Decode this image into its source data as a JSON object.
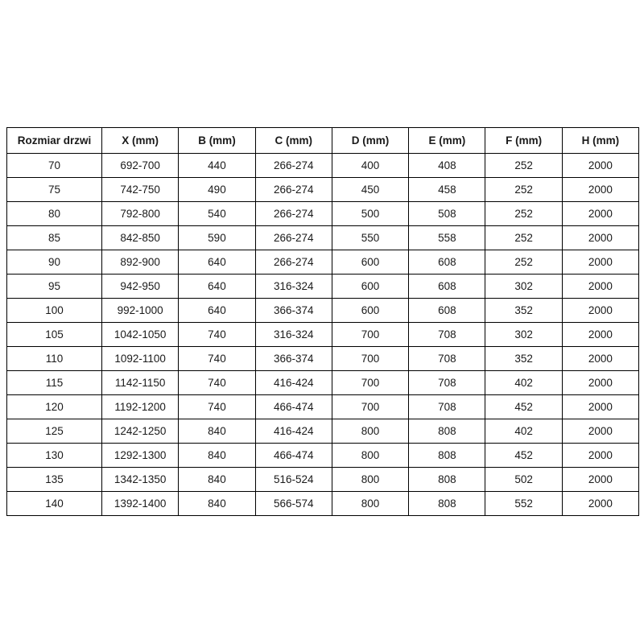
{
  "table": {
    "title": "door-size-dimension-table",
    "columns": [
      "Rozmiar drzwi",
      "X (mm)",
      "B (mm)",
      "C (mm)",
      "D (mm)",
      "E (mm)",
      "F (mm)",
      "H (mm)"
    ],
    "rows": [
      [
        "70",
        "692-700",
        "440",
        "266-274",
        "400",
        "408",
        "252",
        "2000"
      ],
      [
        "75",
        "742-750",
        "490",
        "266-274",
        "450",
        "458",
        "252",
        "2000"
      ],
      [
        "80",
        "792-800",
        "540",
        "266-274",
        "500",
        "508",
        "252",
        "2000"
      ],
      [
        "85",
        "842-850",
        "590",
        "266-274",
        "550",
        "558",
        "252",
        "2000"
      ],
      [
        "90",
        "892-900",
        "640",
        "266-274",
        "600",
        "608",
        "252",
        "2000"
      ],
      [
        "95",
        "942-950",
        "640",
        "316-324",
        "600",
        "608",
        "302",
        "2000"
      ],
      [
        "100",
        "992-1000",
        "640",
        "366-374",
        "600",
        "608",
        "352",
        "2000"
      ],
      [
        "105",
        "1042-1050",
        "740",
        "316-324",
        "700",
        "708",
        "302",
        "2000"
      ],
      [
        "110",
        "1092-1100",
        "740",
        "366-374",
        "700",
        "708",
        "352",
        "2000"
      ],
      [
        "115",
        "1142-1150",
        "740",
        "416-424",
        "700",
        "708",
        "402",
        "2000"
      ],
      [
        "120",
        "1192-1200",
        "740",
        "466-474",
        "700",
        "708",
        "452",
        "2000"
      ],
      [
        "125",
        "1242-1250",
        "840",
        "416-424",
        "800",
        "808",
        "402",
        "2000"
      ],
      [
        "130",
        "1292-1300",
        "840",
        "466-474",
        "800",
        "808",
        "452",
        "2000"
      ],
      [
        "135",
        "1342-1350",
        "840",
        "516-524",
        "800",
        "808",
        "502",
        "2000"
      ],
      [
        "140",
        "1392-1400",
        "840",
        "566-574",
        "800",
        "808",
        "552",
        "2000"
      ]
    ],
    "colors": {
      "border": "#000000",
      "text": "#1a1a1a",
      "background": "#ffffff"
    }
  }
}
